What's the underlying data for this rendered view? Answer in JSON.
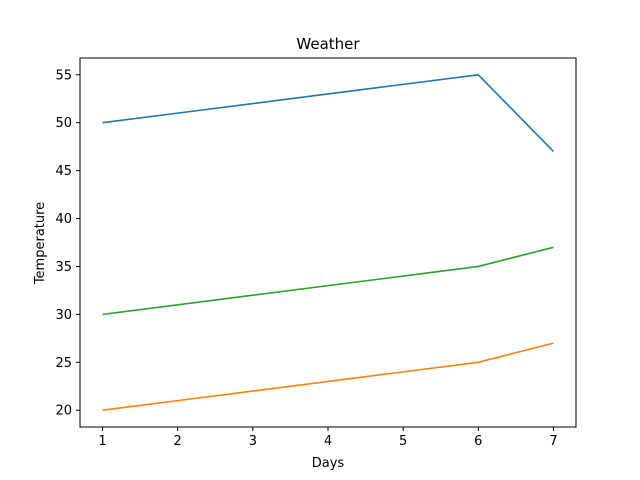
{
  "chart_data": {
    "type": "line",
    "title": "Weather",
    "xlabel": "Days",
    "ylabel": "Temperature",
    "x": [
      1,
      2,
      3,
      4,
      5,
      6,
      7
    ],
    "xticks": [
      "1",
      "2",
      "3",
      "4",
      "5",
      "6",
      "7"
    ],
    "yticks": [
      "20",
      "25",
      "30",
      "35",
      "40",
      "45",
      "50",
      "55"
    ],
    "xlim": [
      0.7,
      7.3
    ],
    "ylim": [
      18.25,
      56.75
    ],
    "grid": false,
    "series": [
      {
        "values": [
          50,
          51,
          52,
          53,
          54,
          55,
          47
        ],
        "color": "#1f77b4"
      },
      {
        "values": [
          20,
          21,
          22,
          23,
          24,
          25,
          27
        ],
        "color": "#ff7f0e"
      },
      {
        "values": [
          30,
          31,
          32,
          33,
          34,
          35,
          37
        ],
        "color": "#2ca02c"
      }
    ]
  }
}
